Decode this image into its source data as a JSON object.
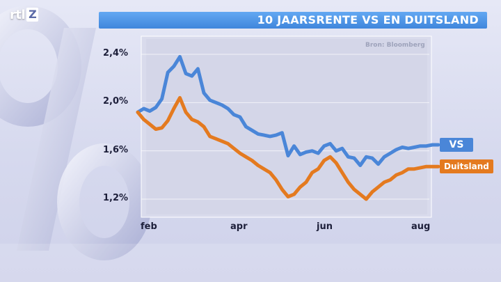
{
  "logo": {
    "prefix": "rtl",
    "box": "Z"
  },
  "chart_data": {
    "type": "line",
    "title": "10 JAARSRENTE VS EN DUITSLAND",
    "source": "Bron: Bloomberg",
    "x_ticks": [
      "feb",
      "apr",
      "jun",
      "aug"
    ],
    "y_ticks": [
      "2,4%",
      "2,0%",
      "1,6%",
      "1,2%"
    ],
    "y_tick_values": [
      2.4,
      2.0,
      1.6,
      1.2
    ],
    "ylim": [
      1.05,
      2.55
    ],
    "xlim": [
      0,
      1
    ],
    "grid": true,
    "series": [
      {
        "name": "VS",
        "color": "#4a86d8",
        "x": [
          0.0,
          0.02,
          0.04,
          0.06,
          0.08,
          0.1,
          0.12,
          0.14,
          0.16,
          0.18,
          0.2,
          0.22,
          0.24,
          0.26,
          0.28,
          0.3,
          0.32,
          0.34,
          0.36,
          0.38,
          0.4,
          0.42,
          0.44,
          0.46,
          0.48,
          0.5,
          0.52,
          0.54,
          0.56,
          0.58,
          0.6,
          0.62,
          0.64,
          0.66,
          0.68,
          0.7,
          0.72,
          0.74,
          0.76,
          0.78,
          0.8,
          0.82,
          0.84,
          0.86,
          0.88,
          0.9,
          0.92,
          0.94,
          0.96,
          0.98,
          1.0
        ],
        "values": [
          1.92,
          1.95,
          1.93,
          1.96,
          2.03,
          2.25,
          2.3,
          2.38,
          2.24,
          2.22,
          2.28,
          2.08,
          2.02,
          2.0,
          1.98,
          1.95,
          1.9,
          1.88,
          1.8,
          1.77,
          1.74,
          1.73,
          1.72,
          1.73,
          1.75,
          1.56,
          1.64,
          1.57,
          1.59,
          1.6,
          1.58,
          1.64,
          1.66,
          1.6,
          1.62,
          1.55,
          1.54,
          1.48,
          1.55,
          1.54,
          1.49,
          1.55,
          1.58,
          1.61,
          1.63,
          1.62,
          1.63,
          1.64,
          1.64,
          1.65,
          1.65
        ]
      },
      {
        "name": "Duitsland",
        "color": "#e47a1f",
        "x": [
          0.0,
          0.02,
          0.04,
          0.06,
          0.08,
          0.1,
          0.12,
          0.14,
          0.16,
          0.18,
          0.2,
          0.22,
          0.24,
          0.26,
          0.28,
          0.3,
          0.32,
          0.34,
          0.36,
          0.38,
          0.4,
          0.42,
          0.44,
          0.46,
          0.48,
          0.5,
          0.52,
          0.54,
          0.56,
          0.58,
          0.6,
          0.62,
          0.64,
          0.66,
          0.68,
          0.7,
          0.72,
          0.74,
          0.76,
          0.78,
          0.8,
          0.82,
          0.84,
          0.86,
          0.88,
          0.9,
          0.92,
          0.94,
          0.96,
          0.98,
          1.0
        ],
        "values": [
          1.92,
          1.86,
          1.82,
          1.78,
          1.79,
          1.85,
          1.95,
          2.04,
          1.92,
          1.86,
          1.84,
          1.8,
          1.72,
          1.7,
          1.68,
          1.66,
          1.62,
          1.58,
          1.55,
          1.52,
          1.48,
          1.45,
          1.42,
          1.36,
          1.28,
          1.22,
          1.24,
          1.3,
          1.34,
          1.42,
          1.45,
          1.52,
          1.55,
          1.5,
          1.42,
          1.34,
          1.28,
          1.24,
          1.2,
          1.26,
          1.3,
          1.34,
          1.36,
          1.4,
          1.42,
          1.45,
          1.45,
          1.46,
          1.47,
          1.47,
          1.47
        ]
      }
    ]
  }
}
